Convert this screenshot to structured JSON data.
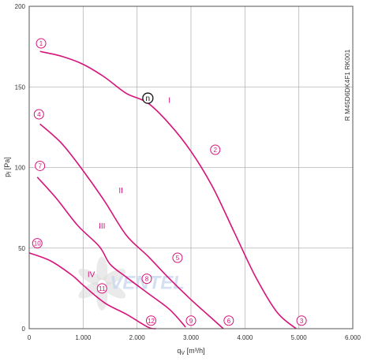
{
  "chart_data": {
    "type": "line",
    "title": "",
    "xlabel": "q",
    "xlabel_sub": "V",
    "xlabel_unit": " [m³/h]",
    "ylabel": "p",
    "ylabel_sub": "f",
    "ylabel_unit": " [Pa]",
    "side_code": "R M45D6DK4F1 RK001",
    "xlim": [
      0,
      6000
    ],
    "ylim": [
      0,
      200
    ],
    "x_ticks": [
      {
        "v": 0,
        "label": "0"
      },
      {
        "v": 1000,
        "label": "1.000"
      },
      {
        "v": 2000,
        "label": "2.000"
      },
      {
        "v": 3000,
        "label": "3.000"
      },
      {
        "v": 4000,
        "label": "4.000"
      },
      {
        "v": 5000,
        "label": "5.000"
      },
      {
        "v": 6000,
        "label": "6.000"
      }
    ],
    "y_ticks": [
      {
        "v": 0,
        "label": "0"
      },
      {
        "v": 50,
        "label": "50"
      },
      {
        "v": 100,
        "label": "100"
      },
      {
        "v": 150,
        "label": "150"
      },
      {
        "v": 200,
        "label": "200"
      }
    ],
    "grid": true,
    "color": "#d6137a",
    "watermark": "VENTEL",
    "series": [
      {
        "name": "I",
        "label_at": [
          2600,
          140
        ],
        "points": [
          [
            200,
            172
          ],
          [
            600,
            169
          ],
          [
            1000,
            164
          ],
          [
            1400,
            156
          ],
          [
            1800,
            146
          ],
          [
            2200,
            140
          ],
          [
            2600,
            127
          ],
          [
            3000,
            110
          ],
          [
            3400,
            88
          ],
          [
            3800,
            60
          ],
          [
            4200,
            32
          ],
          [
            4600,
            10
          ],
          [
            4950,
            0
          ]
        ]
      },
      {
        "name": "II",
        "label_at": [
          1700,
          84
        ],
        "points": [
          [
            200,
            127
          ],
          [
            600,
            115
          ],
          [
            1000,
            98
          ],
          [
            1400,
            79
          ],
          [
            1800,
            58
          ],
          [
            2200,
            45
          ],
          [
            2600,
            31
          ],
          [
            3000,
            18
          ],
          [
            3400,
            6
          ],
          [
            3600,
            0
          ]
        ]
      },
      {
        "name": "III",
        "label_at": [
          1350,
          62
        ],
        "points": [
          [
            150,
            94
          ],
          [
            500,
            81
          ],
          [
            900,
            64
          ],
          [
            1300,
            51
          ],
          [
            1500,
            40
          ],
          [
            1800,
            32
          ],
          [
            2200,
            22
          ],
          [
            2600,
            12
          ],
          [
            2900,
            1
          ]
        ]
      },
      {
        "name": "IV",
        "label_at": [
          1150,
          32
        ],
        "points": [
          [
            0,
            47
          ],
          [
            400,
            42
          ],
          [
            800,
            33
          ],
          [
            1000,
            27
          ],
          [
            1400,
            16
          ],
          [
            1800,
            9
          ],
          [
            2200,
            1
          ],
          [
            2350,
            0
          ]
        ]
      }
    ],
    "operating_points": [
      {
        "label": "1",
        "x": 220,
        "y": 177
      },
      {
        "label": "2",
        "x": 3450,
        "y": 111
      },
      {
        "label": "3",
        "x": 5050,
        "y": 5
      },
      {
        "label": "4",
        "x": 180,
        "y": 133
      },
      {
        "label": "5",
        "x": 2750,
        "y": 44
      },
      {
        "label": "6",
        "x": 3700,
        "y": 5
      },
      {
        "label": "7",
        "x": 200,
        "y": 101
      },
      {
        "label": "8",
        "x": 2180,
        "y": 31
      },
      {
        "label": "9",
        "x": 3000,
        "y": 5
      },
      {
        "label": "10",
        "x": 150,
        "y": 53
      },
      {
        "label": "11",
        "x": 1350,
        "y": 25
      },
      {
        "label": "12",
        "x": 2260,
        "y": 5
      }
    ],
    "nominal_point": {
      "label": "n",
      "x": 2200,
      "y": 143
    }
  }
}
